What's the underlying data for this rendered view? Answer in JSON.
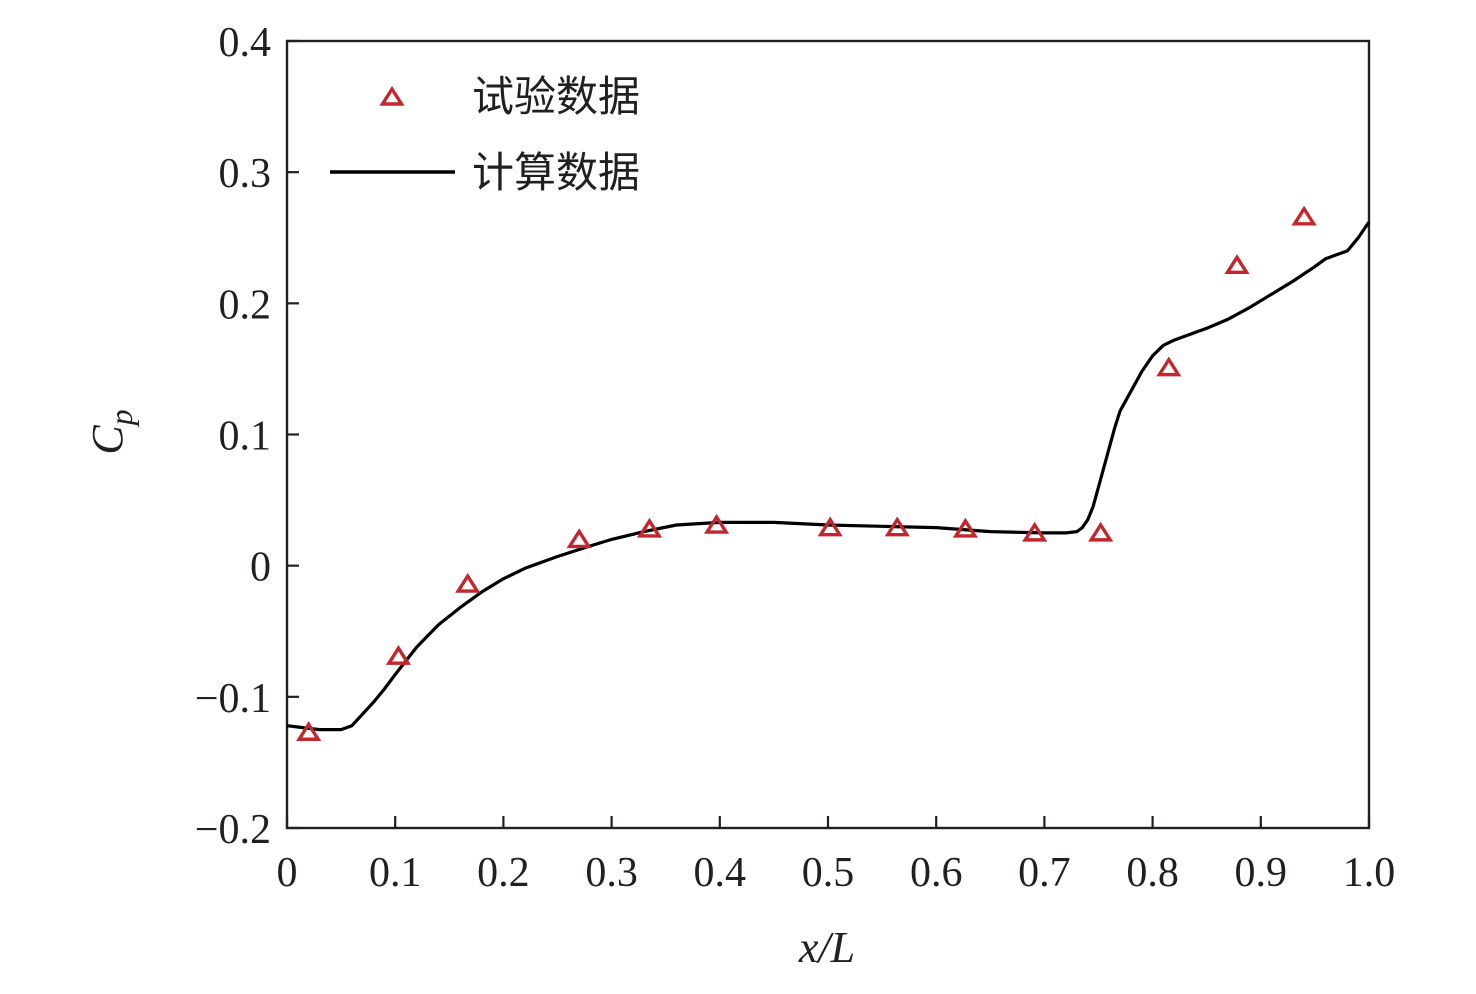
{
  "chart_data": {
    "type": "scatter",
    "xlabel": "x/L",
    "ylabel_main": "C",
    "ylabel_sub": "p",
    "xlim": [
      0,
      1.0
    ],
    "ylim": [
      -0.2,
      0.4
    ],
    "x_ticks": [
      0,
      0.1,
      0.2,
      0.3,
      0.4,
      0.5,
      0.6,
      0.7,
      0.8,
      0.9,
      1.0
    ],
    "x_tick_labels": [
      "0",
      "0.1",
      "0.2",
      "0.3",
      "0.4",
      "0.5",
      "0.6",
      "0.7",
      "0.8",
      "0.9",
      "1.0"
    ],
    "y_ticks": [
      -0.2,
      -0.1,
      0,
      0.1,
      0.2,
      0.3,
      0.4
    ],
    "y_tick_labels": [
      "−0.2",
      "−0.1",
      "0",
      "0.1",
      "0.2",
      "0.3",
      "0.4"
    ],
    "grid": false,
    "legend_position": "top-left",
    "series": [
      {
        "name": "试验数据",
        "kind": "scatter",
        "marker": "triangle-open",
        "color": "#c1272d",
        "points": [
          [
            0.02,
            -0.128
          ],
          [
            0.103,
            -0.07
          ],
          [
            0.167,
            -0.015
          ],
          [
            0.27,
            0.019
          ],
          [
            0.335,
            0.027
          ],
          [
            0.397,
            0.03
          ],
          [
            0.502,
            0.028
          ],
          [
            0.564,
            0.028
          ],
          [
            0.627,
            0.027
          ],
          [
            0.691,
            0.024
          ],
          [
            0.752,
            0.024
          ],
          [
            0.815,
            0.15
          ],
          [
            0.878,
            0.228
          ],
          [
            0.94,
            0.265
          ]
        ]
      },
      {
        "name": "计算数据",
        "kind": "line",
        "color": "#000000",
        "points": [
          [
            0.0,
            -0.122
          ],
          [
            0.01,
            -0.123
          ],
          [
            0.02,
            -0.124
          ],
          [
            0.03,
            -0.125
          ],
          [
            0.04,
            -0.125
          ],
          [
            0.05,
            -0.125
          ],
          [
            0.06,
            -0.122
          ],
          [
            0.07,
            -0.113
          ],
          [
            0.08,
            -0.104
          ],
          [
            0.09,
            -0.094
          ],
          [
            0.1,
            -0.083
          ],
          [
            0.12,
            -0.062
          ],
          [
            0.14,
            -0.045
          ],
          [
            0.16,
            -0.032
          ],
          [
            0.18,
            -0.02
          ],
          [
            0.2,
            -0.01
          ],
          [
            0.22,
            -0.002
          ],
          [
            0.25,
            0.007
          ],
          [
            0.28,
            0.015
          ],
          [
            0.3,
            0.02
          ],
          [
            0.33,
            0.026
          ],
          [
            0.36,
            0.031
          ],
          [
            0.4,
            0.033
          ],
          [
            0.45,
            0.033
          ],
          [
            0.5,
            0.031
          ],
          [
            0.55,
            0.03
          ],
          [
            0.6,
            0.029
          ],
          [
            0.65,
            0.026
          ],
          [
            0.7,
            0.025
          ],
          [
            0.72,
            0.025
          ],
          [
            0.73,
            0.026
          ],
          [
            0.735,
            0.029
          ],
          [
            0.74,
            0.035
          ],
          [
            0.745,
            0.045
          ],
          [
            0.75,
            0.06
          ],
          [
            0.755,
            0.075
          ],
          [
            0.76,
            0.09
          ],
          [
            0.765,
            0.105
          ],
          [
            0.77,
            0.118
          ],
          [
            0.78,
            0.133
          ],
          [
            0.79,
            0.148
          ],
          [
            0.8,
            0.16
          ],
          [
            0.81,
            0.168
          ],
          [
            0.82,
            0.172
          ],
          [
            0.83,
            0.175
          ],
          [
            0.85,
            0.181
          ],
          [
            0.87,
            0.188
          ],
          [
            0.89,
            0.197
          ],
          [
            0.91,
            0.207
          ],
          [
            0.93,
            0.217
          ],
          [
            0.95,
            0.228
          ],
          [
            0.96,
            0.234
          ],
          [
            0.97,
            0.237
          ],
          [
            0.98,
            0.24
          ],
          [
            0.99,
            0.25
          ],
          [
            1.0,
            0.262
          ]
        ]
      }
    ]
  }
}
